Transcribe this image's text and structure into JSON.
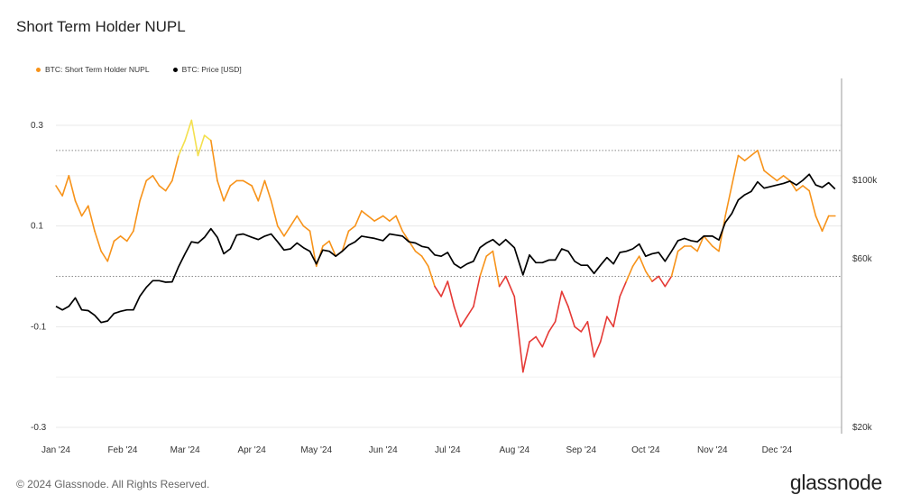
{
  "title": "Short Term Holder NUPL",
  "footer": "© 2024 Glassnode. All Rights Reserved.",
  "brand": "glassnode",
  "chart_data": {
    "type": "line",
    "legend_placement": "top-left",
    "grid": true,
    "x_ticks": [
      "Jan '24",
      "Feb '24",
      "Mar '24",
      "Apr '24",
      "May '24",
      "Jun '24",
      "Jul '24",
      "Aug '24",
      "Sep '24",
      "Oct '24",
      "Nov '24",
      "Dec '24"
    ],
    "x_range": [
      "2024-01-01",
      "2024-12-31"
    ],
    "y_left": {
      "ticks": [
        "0.3",
        "0.1",
        "-0.1",
        "-0.3"
      ],
      "tick_values": [
        0.3,
        0.1,
        -0.1,
        -0.3
      ],
      "range": [
        -0.3,
        0.3
      ]
    },
    "y_right": {
      "ticks": [
        "$100k",
        "$60k",
        "$20k"
      ],
      "tick_values": [
        100000,
        60000,
        20000
      ],
      "range": [
        20000,
        100000
      ],
      "scale": "log"
    },
    "reference_lines": [
      0.25,
      0.0
    ],
    "colors": {
      "low": "#e53935",
      "mid": "#f7931a",
      "high": "#f4e04d",
      "price": "#000000",
      "axis": "#999999",
      "grid": "#e8e8e8"
    },
    "series": [
      {
        "name": "BTC: Short Term Holder NUPL",
        "axis": "left",
        "color": "#f7931a",
        "points": [
          [
            "2024-01-01",
            0.18
          ],
          [
            "2024-01-04",
            0.16
          ],
          [
            "2024-01-07",
            0.2
          ],
          [
            "2024-01-10",
            0.15
          ],
          [
            "2024-01-13",
            0.12
          ],
          [
            "2024-01-16",
            0.14
          ],
          [
            "2024-01-19",
            0.09
          ],
          [
            "2024-01-22",
            0.05
          ],
          [
            "2024-01-25",
            0.03
          ],
          [
            "2024-01-28",
            0.07
          ],
          [
            "2024-01-31",
            0.08
          ],
          [
            "2024-02-03",
            0.07
          ],
          [
            "2024-02-06",
            0.09
          ],
          [
            "2024-02-09",
            0.15
          ],
          [
            "2024-02-12",
            0.19
          ],
          [
            "2024-02-15",
            0.2
          ],
          [
            "2024-02-18",
            0.18
          ],
          [
            "2024-02-21",
            0.17
          ],
          [
            "2024-02-24",
            0.19
          ],
          [
            "2024-02-27",
            0.24
          ],
          [
            "2024-03-01",
            0.27
          ],
          [
            "2024-03-04",
            0.31
          ],
          [
            "2024-03-07",
            0.24
          ],
          [
            "2024-03-10",
            0.28
          ],
          [
            "2024-03-13",
            0.27
          ],
          [
            "2024-03-16",
            0.19
          ],
          [
            "2024-03-19",
            0.15
          ],
          [
            "2024-03-22",
            0.18
          ],
          [
            "2024-03-25",
            0.19
          ],
          [
            "2024-03-28",
            0.19
          ],
          [
            "2024-04-01",
            0.18
          ],
          [
            "2024-04-04",
            0.15
          ],
          [
            "2024-04-07",
            0.19
          ],
          [
            "2024-04-10",
            0.15
          ],
          [
            "2024-04-13",
            0.1
          ],
          [
            "2024-04-16",
            0.08
          ],
          [
            "2024-04-19",
            0.1
          ],
          [
            "2024-04-22",
            0.12
          ],
          [
            "2024-04-25",
            0.1
          ],
          [
            "2024-04-28",
            0.09
          ],
          [
            "2024-05-01",
            0.02
          ],
          [
            "2024-05-04",
            0.06
          ],
          [
            "2024-05-07",
            0.07
          ],
          [
            "2024-05-10",
            0.04
          ],
          [
            "2024-05-13",
            0.05
          ],
          [
            "2024-05-16",
            0.09
          ],
          [
            "2024-05-19",
            0.1
          ],
          [
            "2024-05-22",
            0.13
          ],
          [
            "2024-05-25",
            0.12
          ],
          [
            "2024-05-28",
            0.11
          ],
          [
            "2024-06-01",
            0.12
          ],
          [
            "2024-06-04",
            0.11
          ],
          [
            "2024-06-07",
            0.12
          ],
          [
            "2024-06-10",
            0.09
          ],
          [
            "2024-06-13",
            0.07
          ],
          [
            "2024-06-16",
            0.05
          ],
          [
            "2024-06-19",
            0.04
          ],
          [
            "2024-06-22",
            0.02
          ],
          [
            "2024-06-25",
            -0.02
          ],
          [
            "2024-06-28",
            -0.04
          ],
          [
            "2024-07-01",
            -0.01
          ],
          [
            "2024-07-04",
            -0.06
          ],
          [
            "2024-07-07",
            -0.1
          ],
          [
            "2024-07-10",
            -0.08
          ],
          [
            "2024-07-13",
            -0.06
          ],
          [
            "2024-07-16",
            0.0
          ],
          [
            "2024-07-19",
            0.04
          ],
          [
            "2024-07-22",
            0.05
          ],
          [
            "2024-07-25",
            -0.02
          ],
          [
            "2024-07-28",
            0.0
          ],
          [
            "2024-08-01",
            -0.04
          ],
          [
            "2024-08-05",
            -0.19
          ],
          [
            "2024-08-08",
            -0.13
          ],
          [
            "2024-08-11",
            -0.12
          ],
          [
            "2024-08-14",
            -0.14
          ],
          [
            "2024-08-17",
            -0.11
          ],
          [
            "2024-08-20",
            -0.09
          ],
          [
            "2024-08-23",
            -0.03
          ],
          [
            "2024-08-26",
            -0.06
          ],
          [
            "2024-08-29",
            -0.1
          ],
          [
            "2024-09-01",
            -0.11
          ],
          [
            "2024-09-04",
            -0.09
          ],
          [
            "2024-09-07",
            -0.16
          ],
          [
            "2024-09-10",
            -0.13
          ],
          [
            "2024-09-13",
            -0.08
          ],
          [
            "2024-09-16",
            -0.1
          ],
          [
            "2024-09-19",
            -0.04
          ],
          [
            "2024-09-22",
            -0.01
          ],
          [
            "2024-09-25",
            0.02
          ],
          [
            "2024-09-28",
            0.04
          ],
          [
            "2024-10-01",
            0.01
          ],
          [
            "2024-10-04",
            -0.01
          ],
          [
            "2024-10-07",
            0.0
          ],
          [
            "2024-10-10",
            -0.02
          ],
          [
            "2024-10-13",
            0.0
          ],
          [
            "2024-10-16",
            0.05
          ],
          [
            "2024-10-19",
            0.06
          ],
          [
            "2024-10-22",
            0.06
          ],
          [
            "2024-10-25",
            0.05
          ],
          [
            "2024-10-28",
            0.08
          ],
          [
            "2024-11-01",
            0.06
          ],
          [
            "2024-11-04",
            0.05
          ],
          [
            "2024-11-07",
            0.12
          ],
          [
            "2024-11-10",
            0.18
          ],
          [
            "2024-11-13",
            0.24
          ],
          [
            "2024-11-16",
            0.23
          ],
          [
            "2024-11-19",
            0.24
          ],
          [
            "2024-11-22",
            0.25
          ],
          [
            "2024-11-25",
            0.21
          ],
          [
            "2024-11-28",
            0.2
          ],
          [
            "2024-12-01",
            0.19
          ],
          [
            "2024-12-04",
            0.2
          ],
          [
            "2024-12-07",
            0.19
          ],
          [
            "2024-12-10",
            0.17
          ],
          [
            "2024-12-13",
            0.18
          ],
          [
            "2024-12-16",
            0.17
          ],
          [
            "2024-12-19",
            0.12
          ],
          [
            "2024-12-22",
            0.09
          ],
          [
            "2024-12-25",
            0.12
          ],
          [
            "2024-12-28",
            0.12
          ]
        ]
      },
      {
        "name": "BTC: Price [USD]",
        "axis": "right",
        "color": "#000000",
        "points": [
          [
            "2024-01-01",
            44000
          ],
          [
            "2024-01-04",
            43000
          ],
          [
            "2024-01-07",
            44000
          ],
          [
            "2024-01-10",
            46500
          ],
          [
            "2024-01-13",
            43000
          ],
          [
            "2024-01-16",
            42800
          ],
          [
            "2024-01-19",
            41500
          ],
          [
            "2024-01-22",
            39600
          ],
          [
            "2024-01-25",
            40000
          ],
          [
            "2024-01-28",
            42000
          ],
          [
            "2024-01-31",
            42600
          ],
          [
            "2024-02-03",
            43000
          ],
          [
            "2024-02-06",
            43000
          ],
          [
            "2024-02-09",
            47000
          ],
          [
            "2024-02-12",
            49800
          ],
          [
            "2024-02-15",
            52000
          ],
          [
            "2024-02-18",
            52000
          ],
          [
            "2024-02-21",
            51500
          ],
          [
            "2024-02-24",
            51600
          ],
          [
            "2024-02-27",
            57000
          ],
          [
            "2024-03-01",
            62000
          ],
          [
            "2024-03-04",
            67000
          ],
          [
            "2024-03-07",
            66500
          ],
          [
            "2024-03-10",
            69000
          ],
          [
            "2024-03-13",
            73000
          ],
          [
            "2024-03-16",
            69000
          ],
          [
            "2024-03-19",
            62000
          ],
          [
            "2024-03-22",
            64000
          ],
          [
            "2024-03-25",
            70000
          ],
          [
            "2024-03-28",
            70500
          ],
          [
            "2024-04-01",
            69000
          ],
          [
            "2024-04-04",
            68000
          ],
          [
            "2024-04-07",
            69500
          ],
          [
            "2024-04-10",
            70500
          ],
          [
            "2024-04-13",
            67000
          ],
          [
            "2024-04-16",
            63500
          ],
          [
            "2024-04-19",
            64000
          ],
          [
            "2024-04-22",
            66500
          ],
          [
            "2024-04-25",
            64500
          ],
          [
            "2024-04-28",
            63000
          ],
          [
            "2024-05-01",
            58000
          ],
          [
            "2024-05-04",
            63500
          ],
          [
            "2024-05-07",
            63000
          ],
          [
            "2024-05-10",
            61000
          ],
          [
            "2024-05-13",
            63000
          ],
          [
            "2024-05-16",
            65500
          ],
          [
            "2024-05-19",
            67000
          ],
          [
            "2024-05-22",
            69500
          ],
          [
            "2024-05-25",
            69000
          ],
          [
            "2024-05-28",
            68500
          ],
          [
            "2024-06-01",
            67500
          ],
          [
            "2024-06-04",
            70500
          ],
          [
            "2024-06-07",
            70000
          ],
          [
            "2024-06-10",
            69500
          ],
          [
            "2024-06-13",
            67000
          ],
          [
            "2024-06-16",
            66500
          ],
          [
            "2024-06-19",
            65000
          ],
          [
            "2024-06-22",
            64500
          ],
          [
            "2024-06-25",
            61500
          ],
          [
            "2024-06-28",
            61000
          ],
          [
            "2024-07-01",
            62500
          ],
          [
            "2024-07-04",
            58000
          ],
          [
            "2024-07-07",
            56500
          ],
          [
            "2024-07-10",
            58000
          ],
          [
            "2024-07-13",
            59000
          ],
          [
            "2024-07-16",
            64500
          ],
          [
            "2024-07-19",
            66500
          ],
          [
            "2024-07-22",
            68000
          ],
          [
            "2024-07-25",
            65500
          ],
          [
            "2024-07-28",
            68000
          ],
          [
            "2024-08-01",
            64500
          ],
          [
            "2024-08-05",
            54000
          ],
          [
            "2024-08-08",
            61500
          ],
          [
            "2024-08-11",
            58500
          ],
          [
            "2024-08-14",
            58500
          ],
          [
            "2024-08-17",
            59500
          ],
          [
            "2024-08-20",
            59500
          ],
          [
            "2024-08-23",
            64000
          ],
          [
            "2024-08-26",
            63000
          ],
          [
            "2024-08-29",
            59000
          ],
          [
            "2024-09-01",
            57500
          ],
          [
            "2024-09-04",
            57500
          ],
          [
            "2024-09-07",
            54500
          ],
          [
            "2024-09-10",
            57500
          ],
          [
            "2024-09-13",
            60500
          ],
          [
            "2024-09-16",
            58000
          ],
          [
            "2024-09-19",
            62500
          ],
          [
            "2024-09-22",
            63000
          ],
          [
            "2024-09-25",
            64000
          ],
          [
            "2024-09-28",
            66000
          ],
          [
            "2024-10-01",
            61000
          ],
          [
            "2024-10-04",
            62000
          ],
          [
            "2024-10-07",
            62500
          ],
          [
            "2024-10-10",
            59000
          ],
          [
            "2024-10-13",
            63000
          ],
          [
            "2024-10-16",
            67500
          ],
          [
            "2024-10-19",
            68500
          ],
          [
            "2024-10-22",
            67500
          ],
          [
            "2024-10-25",
            67000
          ],
          [
            "2024-10-28",
            69500
          ],
          [
            "2024-11-01",
            69500
          ],
          [
            "2024-11-04",
            67800
          ],
          [
            "2024-11-07",
            76000
          ],
          [
            "2024-11-10",
            80500
          ],
          [
            "2024-11-13",
            88000
          ],
          [
            "2024-11-16",
            91000
          ],
          [
            "2024-11-19",
            93000
          ],
          [
            "2024-11-22",
            99000
          ],
          [
            "2024-11-25",
            95000
          ],
          [
            "2024-11-28",
            96000
          ],
          [
            "2024-12-01",
            97000
          ],
          [
            "2024-12-04",
            98000
          ],
          [
            "2024-12-07",
            99500
          ],
          [
            "2024-12-10",
            97000
          ],
          [
            "2024-12-13",
            100000
          ],
          [
            "2024-12-16",
            104000
          ],
          [
            "2024-12-19",
            97000
          ],
          [
            "2024-12-22",
            95500
          ],
          [
            "2024-12-25",
            98500
          ],
          [
            "2024-12-28",
            94500
          ]
        ]
      }
    ]
  }
}
